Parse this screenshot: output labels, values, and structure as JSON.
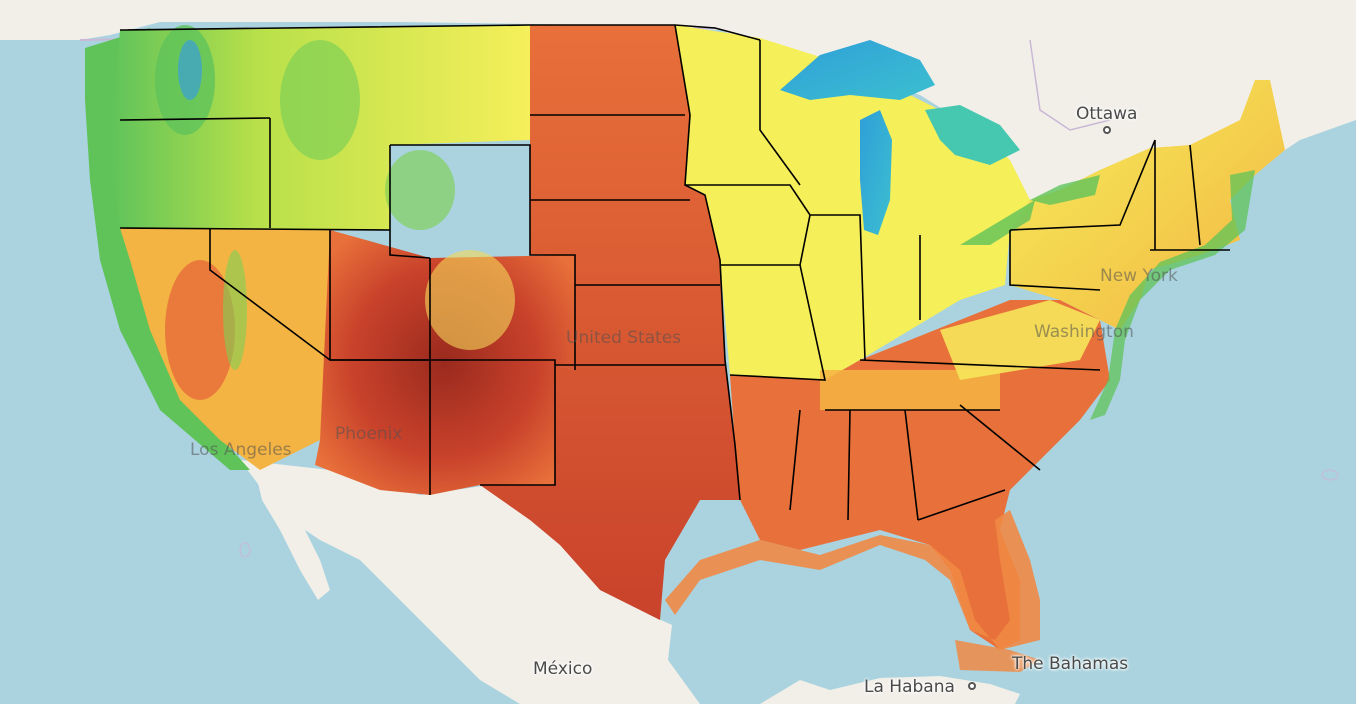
{
  "map": {
    "basemap_colors": {
      "water": "#aad3df",
      "land": "#f2efe9",
      "border": "#c9b8d6"
    },
    "overlay": {
      "type": "continuous-raster-heatmap",
      "region": "contiguous-us",
      "color_ramp": [
        "#2f7fd8",
        "#3cbfd0",
        "#5fc35a",
        "#b8e04a",
        "#f5ef5a",
        "#f4b443",
        "#e8703a",
        "#c9422b",
        "#9a2a1e"
      ],
      "state_boundaries": true,
      "boundary_color": "#000000"
    },
    "place_labels": {
      "ottawa": "Ottawa",
      "new_york": "New York",
      "washington": "Washington",
      "united_states": "United States",
      "phoenix": "Phoenix",
      "los_angeles": "Los Angeles",
      "mexico": "México",
      "la_habana": "La Habana",
      "bahamas": "The Bahamas"
    }
  }
}
